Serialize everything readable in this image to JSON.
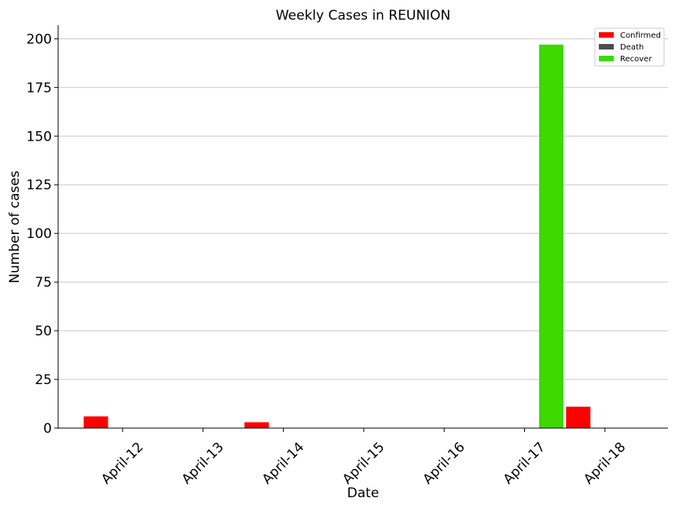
{
  "chart_data": {
    "type": "bar",
    "title": "Weekly Cases in REUNION",
    "xlabel": "Date",
    "ylabel": "Number of cases",
    "categories": [
      "April-12",
      "April-13",
      "April-14",
      "April-15",
      "April-16",
      "April-17",
      "April-18"
    ],
    "series": [
      {
        "name": "Confirmed",
        "color": "#ff0000",
        "values": [
          6,
          0,
          3,
          0,
          0,
          0,
          11
        ]
      },
      {
        "name": "Death",
        "color": "#4d4d4d",
        "values": [
          0,
          0,
          0,
          0,
          0,
          0,
          0
        ]
      },
      {
        "name": "Recover",
        "color": "#3dd900",
        "values": [
          0,
          0,
          0,
          0,
          0,
          197,
          0
        ]
      }
    ],
    "ylim": [
      0,
      207
    ],
    "yticks": [
      0,
      25,
      50,
      75,
      100,
      125,
      150,
      175,
      200
    ],
    "grid": "horizontal",
    "legend_position": "top-right"
  }
}
